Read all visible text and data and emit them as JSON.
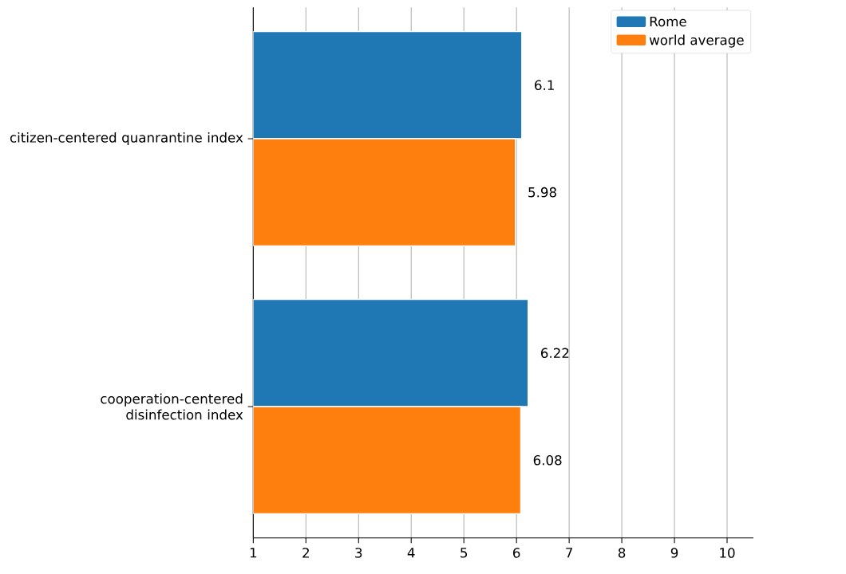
{
  "chart_data": {
    "type": "bar",
    "orientation": "horizontal",
    "categories": [
      "citizen-centered quanrantine index",
      "cooperation-centered disinfection index"
    ],
    "series": [
      {
        "name": "Rome",
        "color": "#1f77b4",
        "values": [
          6.1,
          6.22
        ]
      },
      {
        "name": "world average",
        "color": "#ff7f0e",
        "values": [
          5.98,
          6.08
        ]
      }
    ],
    "xlim": [
      1,
      10.5
    ],
    "xticks": [
      1,
      2,
      3,
      4,
      5,
      6,
      7,
      8,
      9,
      10
    ],
    "grid": "x",
    "legend": "top right",
    "data_labels": true
  }
}
